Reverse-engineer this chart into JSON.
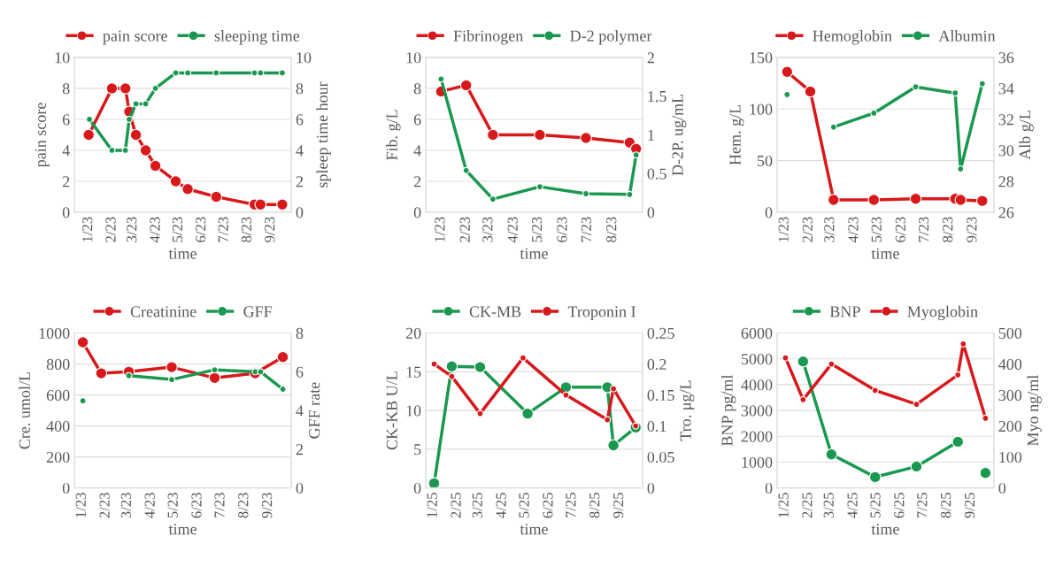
{
  "chart_data": [
    {
      "type": "line",
      "xlabel": "time",
      "ylabel": "pain score",
      "y2label": "spleep time hour",
      "legend": "top",
      "grid": "y",
      "marker": "circle",
      "line_style": "solid",
      "xlim": [
        "2022-12-13",
        "2023-09-28"
      ],
      "xticks": [
        {
          "value": "2023-01-01",
          "label": "1/23"
        },
        {
          "value": "2023-02-01",
          "label": "2/23"
        },
        {
          "value": "2023-03-01",
          "label": "3/23"
        },
        {
          "value": "2023-04-01",
          "label": "4/23"
        },
        {
          "value": "2023-05-01",
          "label": "5/23"
        },
        {
          "value": "2023-06-01",
          "label": "6/23"
        },
        {
          "value": "2023-07-01",
          "label": "7/23"
        },
        {
          "value": "2023-08-01",
          "label": "8/23"
        },
        {
          "value": "2023-09-01",
          "label": "9/23"
        }
      ],
      "ylim": [
        0,
        10
      ],
      "yticks": [
        0,
        2,
        4,
        6,
        8,
        10
      ],
      "y2lim": [
        0,
        10
      ],
      "y2ticks": [
        0,
        2,
        4,
        6,
        8,
        10
      ],
      "series": [
        {
          "name": "pain score",
          "color": "#d7191c",
          "x": [
            "2023-01-01",
            "2023-02-01",
            "2023-02-19",
            "2023-02-24",
            "2023-03-05",
            "2023-03-18",
            "2023-03-31",
            "2023-04-27",
            "2023-05-13",
            "2023-06-20",
            "2023-08-10",
            "2023-08-18",
            "2023-09-16"
          ],
          "values": [
            5,
            8,
            8,
            6.5,
            5,
            4,
            3,
            2,
            1.5,
            1,
            0.5,
            0.5,
            0.5
          ]
        },
        {
          "name": "sleeping time",
          "color": "#1a9850",
          "axis": "y2",
          "x": [
            "2023-01-02",
            "2023-02-01",
            "2023-02-19",
            "2023-02-24",
            "2023-03-05",
            "2023-03-18",
            "2023-03-31",
            "2023-04-27",
            "2023-05-13",
            "2023-06-20",
            "2023-08-10",
            "2023-08-18",
            "2023-09-16"
          ],
          "values": [
            6,
            4,
            4,
            6,
            7,
            7,
            8,
            9,
            9,
            9,
            9,
            9,
            9
          ]
        }
      ]
    },
    {
      "type": "line",
      "xlabel": "time",
      "ylabel": "Fib. g/L",
      "y2label": "D-2P. ug/mL",
      "legend": "top",
      "grid": "y",
      "marker": "circle",
      "line_style": "solid",
      "xlim": [
        "2022-12-13",
        "2023-09-07"
      ],
      "xticks": [
        {
          "value": "2023-01-01",
          "label": "1/23"
        },
        {
          "value": "2023-02-01",
          "label": "2/23"
        },
        {
          "value": "2023-03-01",
          "label": "3/23"
        },
        {
          "value": "2023-04-01",
          "label": "4/23"
        },
        {
          "value": "2023-05-01",
          "label": "5/23"
        },
        {
          "value": "2023-06-01",
          "label": "6/23"
        },
        {
          "value": "2023-07-01",
          "label": "7/23"
        },
        {
          "value": "2023-08-01",
          "label": "8/23"
        }
      ],
      "ylim": [
        0,
        10
      ],
      "yticks": [
        0,
        2,
        4,
        6,
        8,
        10
      ],
      "y2lim": [
        0,
        2
      ],
      "y2ticks": [
        0,
        0.5,
        1,
        1.5,
        2
      ],
      "series": [
        {
          "name": "Fibrinogen",
          "color": "#d7191c",
          "x": [
            "2023-01-01",
            "2023-02-01",
            "2023-03-06",
            "2023-05-03",
            "2023-06-29",
            "2023-08-22",
            "2023-08-30"
          ],
          "values": [
            7.8,
            8.2,
            5.0,
            5.0,
            4.8,
            4.5,
            4.1
          ]
        },
        {
          "name": "D-2 polymer",
          "color": "#1a9850",
          "axis": "y2",
          "x": [
            "2023-01-01",
            "2023-02-01",
            "2023-03-06",
            "2023-05-03",
            "2023-06-29",
            "2023-08-22",
            "2023-08-30"
          ],
          "values": [
            1.72,
            0.54,
            0.17,
            0.33,
            0.24,
            0.23,
            0.74
          ]
        }
      ]
    },
    {
      "type": "line",
      "xlabel": "time",
      "ylabel": "Hem. g/L",
      "y2label": "Alb g/L",
      "legend": "top",
      "grid": "y",
      "marker": "circle",
      "line_style": "solid",
      "xlim": [
        "2022-12-22",
        "2023-09-28"
      ],
      "xticks": [
        {
          "value": "2023-01-01",
          "label": "1/23"
        },
        {
          "value": "2023-02-01",
          "label": "2/23"
        },
        {
          "value": "2023-03-01",
          "label": "3/23"
        },
        {
          "value": "2023-04-01",
          "label": "4/23"
        },
        {
          "value": "2023-05-01",
          "label": "5/23"
        },
        {
          "value": "2023-06-01",
          "label": "6/23"
        },
        {
          "value": "2023-07-01",
          "label": "7/23"
        },
        {
          "value": "2023-08-01",
          "label": "8/23"
        },
        {
          "value": "2023-09-01",
          "label": "9/23"
        }
      ],
      "ylim": [
        0,
        150
      ],
      "yticks": [
        0,
        50,
        100,
        150
      ],
      "y2lim": [
        26,
        36
      ],
      "y2ticks": [
        26,
        28,
        30,
        32,
        34,
        36
      ],
      "series": [
        {
          "name": "Hemoglobin",
          "color": "#d7191c",
          "x": [
            "2023-01-04",
            "2023-02-03",
            "2023-03-05",
            "2023-04-26",
            "2023-06-19",
            "2023-08-09",
            "2023-08-16",
            "2023-09-13"
          ],
          "values": [
            136,
            117,
            12,
            12,
            13,
            13,
            12,
            11
          ]
        },
        {
          "name": "Albumin",
          "color": "#1a9850",
          "axis": "y2",
          "x": [
            "2023-01-04",
            "2023-02-03",
            "2023-03-05",
            "2023-04-26",
            "2023-06-19",
            "2023-08-09",
            "2023-08-16",
            "2023-09-13"
          ],
          "values": [
            33.6,
            null,
            31.5,
            32.4,
            34.1,
            33.7,
            28.8,
            34.3
          ]
        }
      ]
    },
    {
      "type": "line",
      "xlabel": "time",
      "ylabel": "Cre. umol/L",
      "y2label": "GFF rate",
      "legend": "top",
      "grid": "y",
      "marker": "circle",
      "line_style": "solid",
      "xlim": [
        "2022-12-22",
        "2023-10-01"
      ],
      "xticks": [
        {
          "value": "2023-01-01",
          "label": "1/23"
        },
        {
          "value": "2023-02-01",
          "label": "2/23"
        },
        {
          "value": "2023-03-01",
          "label": "3/23"
        },
        {
          "value": "2023-04-01",
          "label": "4/23"
        },
        {
          "value": "2023-05-01",
          "label": "5/23"
        },
        {
          "value": "2023-06-01",
          "label": "6/23"
        },
        {
          "value": "2023-07-01",
          "label": "7/23"
        },
        {
          "value": "2023-08-01",
          "label": "8/23"
        },
        {
          "value": "2023-09-01",
          "label": "9/23"
        }
      ],
      "ylim": [
        0,
        1000
      ],
      "yticks": [
        0,
        200,
        400,
        600,
        800,
        1000
      ],
      "y2lim": [
        0,
        8
      ],
      "y2ticks": [
        0,
        2,
        4,
        6,
        8
      ],
      "series": [
        {
          "name": "Creatinine",
          "color": "#d7191c",
          "x": [
            "2023-01-02",
            "2023-01-26",
            "2023-03-03",
            "2023-04-28",
            "2023-06-23",
            "2023-08-15",
            "2023-09-20"
          ],
          "values": [
            940,
            740,
            750,
            780,
            710,
            740,
            845
          ]
        },
        {
          "name": "GFF",
          "color": "#1a9850",
          "axis": "y2",
          "x": [
            "2023-01-02",
            "2023-01-26",
            "2023-03-03",
            "2023-04-28",
            "2023-06-23",
            "2023-08-15",
            "2023-08-22",
            "2023-09-20"
          ],
          "values": [
            4.5,
            null,
            5.8,
            5.6,
            6.1,
            6.0,
            6.0,
            5.1
          ]
        }
      ]
    },
    {
      "type": "line",
      "xlabel": "time",
      "ylabel": "CK-KB U/L",
      "y2label": "Tro. μg/L",
      "legend": "top",
      "grid": "y",
      "marker": "circle",
      "line_style": "solid",
      "xlim": [
        "2024-12-22",
        "2025-10-01"
      ],
      "xticks": [
        {
          "value": "2025-01-01",
          "label": "1/25"
        },
        {
          "value": "2025-02-01",
          "label": "2/25"
        },
        {
          "value": "2025-03-01",
          "label": "3/25"
        },
        {
          "value": "2025-04-01",
          "label": "4/25"
        },
        {
          "value": "2025-05-01",
          "label": "5/25"
        },
        {
          "value": "2025-06-01",
          "label": "6/25"
        },
        {
          "value": "2025-07-01",
          "label": "7/25"
        },
        {
          "value": "2025-08-01",
          "label": "8/25"
        },
        {
          "value": "2025-09-01",
          "label": "9/25"
        }
      ],
      "ylim": [
        0,
        20
      ],
      "yticks": [
        0,
        5,
        10,
        15,
        20
      ],
      "y2lim": [
        0,
        0.25
      ],
      "y2ticks": [
        0,
        0.05,
        0.1,
        0.15,
        0.2,
        0.25
      ],
      "series": [
        {
          "name": "CK-MB",
          "color": "#1a9850",
          "x": [
            "2025-01-02",
            "2025-01-25",
            "2025-03-03",
            "2025-05-04",
            "2025-06-23",
            "2025-08-16",
            "2025-08-24",
            "2025-09-22"
          ],
          "values": [
            0.6,
            15.7,
            15.6,
            9.6,
            13.0,
            13.0,
            5.5,
            7.8
          ]
        },
        {
          "name": "Troponin I",
          "color": "#d7191c",
          "axis": "y2",
          "x": [
            "2025-01-02",
            "2025-01-25",
            "2025-03-03",
            "2025-04-28",
            "2025-06-23",
            "2025-08-16",
            "2025-08-24",
            "2025-09-22"
          ],
          "values": [
            0.2,
            0.18,
            0.12,
            0.21,
            0.15,
            0.11,
            0.16,
            0.1
          ]
        }
      ]
    },
    {
      "type": "line",
      "xlabel": "time",
      "ylabel": "BNP pg/ml",
      "y2label": "Myo ng/ml",
      "legend": "top",
      "grid": "y",
      "marker": "circle",
      "line_style": "solid",
      "xlim": [
        "2024-12-22",
        "2025-10-01"
      ],
      "xticks": [
        {
          "value": "2025-01-01",
          "label": "1/25"
        },
        {
          "value": "2025-02-01",
          "label": "2/25"
        },
        {
          "value": "2025-03-01",
          "label": "3/25"
        },
        {
          "value": "2025-04-01",
          "label": "4/25"
        },
        {
          "value": "2025-05-01",
          "label": "5/25"
        },
        {
          "value": "2025-06-01",
          "label": "6/25"
        },
        {
          "value": "2025-07-01",
          "label": "7/25"
        },
        {
          "value": "2025-08-01",
          "label": "8/25"
        },
        {
          "value": "2025-09-01",
          "label": "9/25"
        }
      ],
      "ylim": [
        0,
        6000
      ],
      "yticks": [
        0,
        1000,
        2000,
        3000,
        4000,
        5000,
        6000
      ],
      "y2lim": [
        0,
        500
      ],
      "y2ticks": [
        0,
        100,
        200,
        300,
        400,
        500
      ],
      "series": [
        {
          "name": "BNP",
          "color": "#1a9850",
          "x": [
            "2025-01-25",
            "2025-03-03",
            "2025-04-29",
            "2025-06-22",
            "2025-08-15",
            "2025-08-22",
            "2025-09-20"
          ],
          "values": [
            4900,
            1300,
            420,
            830,
            1790,
            null,
            580
          ]
        },
        {
          "name": "Myoglobin",
          "color": "#d7191c",
          "axis": "y2",
          "x": [
            "2025-01-02",
            "2025-01-25",
            "2025-03-03",
            "2025-04-29",
            "2025-06-22",
            "2025-08-15",
            "2025-08-22",
            "2025-09-20"
          ],
          "values": [
            420,
            285,
            400,
            315,
            270,
            365,
            465,
            225
          ]
        }
      ]
    }
  ]
}
